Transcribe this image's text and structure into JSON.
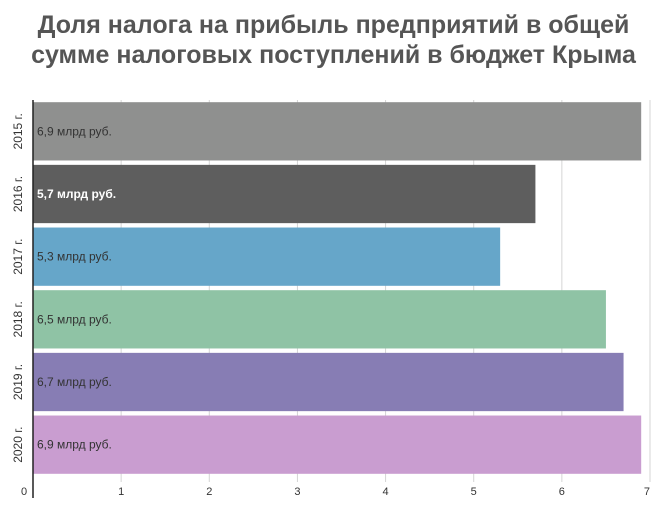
{
  "chart_data": {
    "type": "bar",
    "orientation": "horizontal",
    "title_line1": "Доля налога на прибыль предприятий в общей",
    "title_line2": "сумме налоговых поступлений в бюджет Крыма",
    "categories": [
      "2015 г.",
      "2016 г.",
      "2017 г.",
      "2018 г.",
      "2019 г.",
      "2020 г."
    ],
    "values": [
      6.9,
      5.7,
      5.3,
      6.5,
      6.7,
      6.9
    ],
    "data_labels": [
      "6,9 млрд руб.",
      "5,7 млрд руб.",
      "5,3 млрд руб.",
      "6,5 млрд руб.",
      "6,7 млрд руб.",
      "6,9 млрд руб."
    ],
    "colors": [
      "#8f908f",
      "#5e5e5e",
      "#66a6c9",
      "#8fc3a5",
      "#877db4",
      "#c99dd0"
    ],
    "label_colors": [
      "#333333",
      "#ffffff",
      "#333333",
      "#333333",
      "#333333",
      "#333333"
    ],
    "label_bold": [
      false,
      true,
      false,
      false,
      false,
      false
    ],
    "xlim": [
      0,
      7
    ],
    "x_ticks": [
      "0",
      "1",
      "2",
      "3",
      "4",
      "5",
      "6",
      "7"
    ],
    "grid": true
  }
}
